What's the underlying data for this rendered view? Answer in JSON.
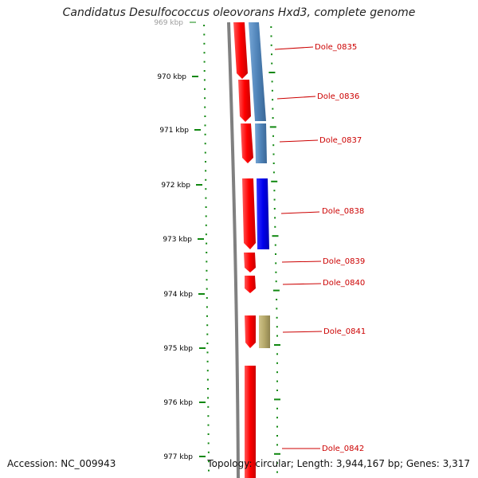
{
  "title": "Candidatus Desulfococcus oleovorans Hxd3, complete genome",
  "footer": {
    "accession": "Accession: NC_009943",
    "info": "Topology: circular; Length: 3,944,167 bp; Genes: 3,317"
  },
  "ticks": [
    {
      "label": "969 kbp"
    },
    {
      "label": "970 kbp"
    },
    {
      "label": "971 kbp"
    },
    {
      "label": "972 kbp"
    },
    {
      "label": "973 kbp"
    },
    {
      "label": "974 kbp"
    },
    {
      "label": "975 kbp"
    },
    {
      "label": "976 kbp"
    },
    {
      "label": "977 kbp"
    }
  ],
  "genes": [
    {
      "label": "Dole_0835"
    },
    {
      "label": "Dole_0836"
    },
    {
      "label": "Dole_0837"
    },
    {
      "label": "Dole_0838"
    },
    {
      "label": "Dole_0839"
    },
    {
      "label": "Dole_0840"
    },
    {
      "label": "Dole_0841"
    },
    {
      "label": "Dole_0842"
    }
  ],
  "colors": {
    "gene": "#ff0000",
    "cog_steel": "#4f83b8",
    "cog_blue": "#0000ee",
    "cog_olive": "#b5a86a",
    "backbone": "#808080",
    "tick": "#118811",
    "label": "#cc0000"
  }
}
